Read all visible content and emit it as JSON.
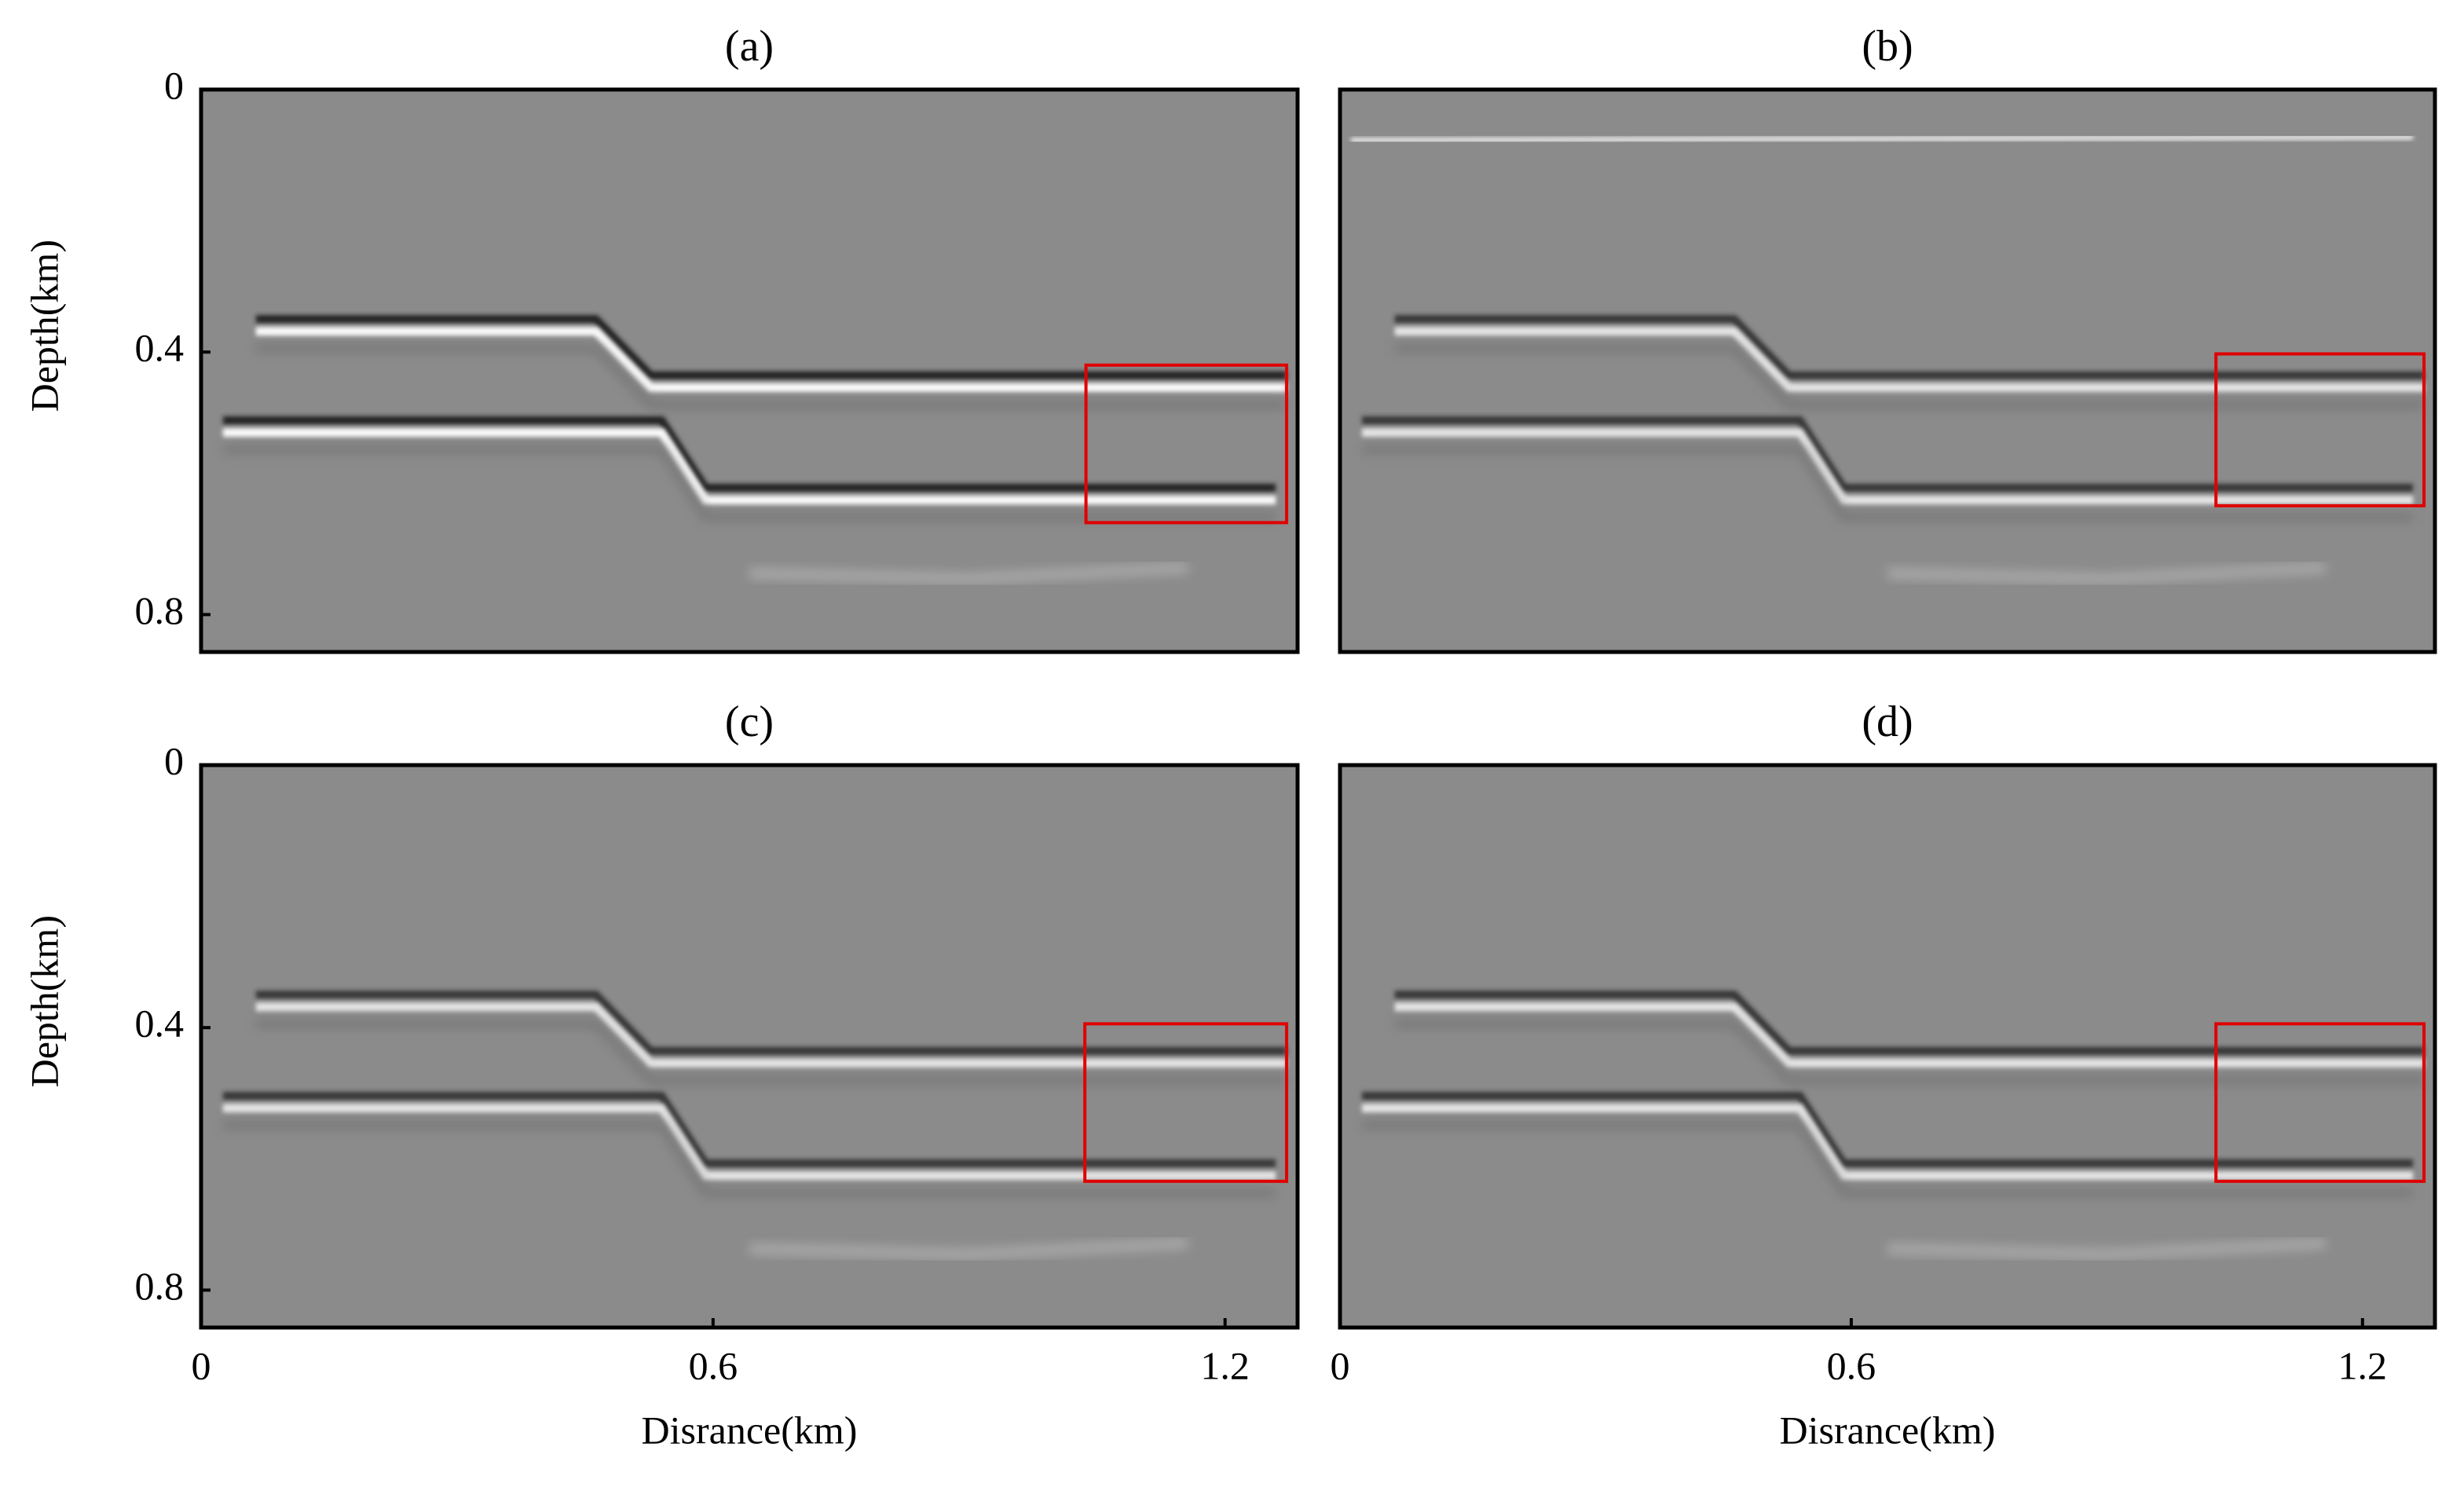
{
  "chart_data": [
    {
      "type": "image",
      "title": "(a)",
      "ylabel": "Depth(km)",
      "xlim": [
        0,
        1.285
      ],
      "ylim": [
        0,
        0.857
      ],
      "yticks": [
        0,
        0.4,
        0.8
      ]
    },
    {
      "type": "image",
      "title": "(b)",
      "xlim": [
        0,
        1.285
      ],
      "ylim": [
        0,
        0.857
      ]
    },
    {
      "type": "image",
      "title": "(c)",
      "ylabel": "Depth(km)",
      "xlabel": "Disrance(km)",
      "xlim": [
        0,
        1.285
      ],
      "ylim": [
        0,
        0.857
      ],
      "xticks": [
        0,
        0.6,
        1.2
      ],
      "yticks": [
        0,
        0.4,
        0.8
      ]
    },
    {
      "type": "image",
      "title": "(d)",
      "xlabel": "Disrance(km)",
      "xlim": [
        0,
        1.285
      ],
      "ylim": [
        0,
        0.857
      ],
      "xticks": [
        0,
        0.6,
        1.2
      ]
    }
  ]
}
